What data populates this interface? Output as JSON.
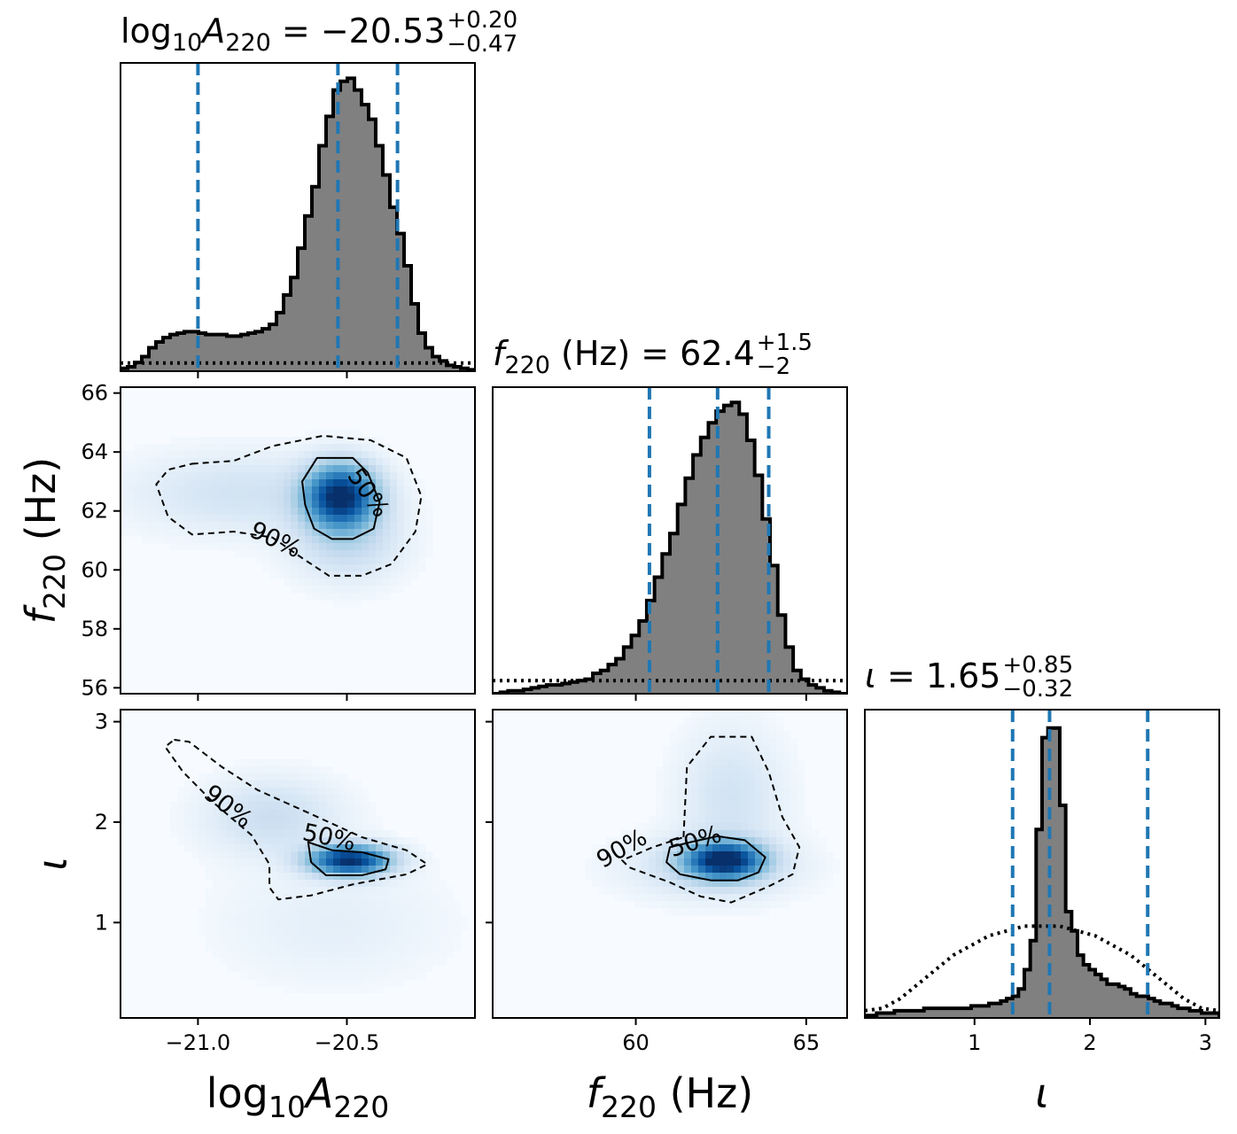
{
  "chart_data": {
    "type": "corner",
    "colors": {
      "histogram_fill": "#808080",
      "histogram_edge": "#000000",
      "quantile_line": "#1f77b4",
      "density_map": "Blues",
      "prior_line": "#000000"
    },
    "parameters": [
      {
        "key": "logA",
        "axis_label": {
          "base": "log",
          "sub1": "10",
          "var": "A",
          "sub2": "220"
        },
        "title": {
          "prefix": "log",
          "prefix_sub": "10",
          "var": "A",
          "var_sub": "220",
          "eq": " = −20.53",
          "sup": "+0.20",
          "sub": "−0.47"
        },
        "range": [
          -21.26,
          -20.07
        ],
        "ticks": [
          -21.0,
          -20.5
        ],
        "tick_labels": [
          "−21.0",
          "−20.5"
        ],
        "quantiles": [
          -21.0,
          -20.53,
          -20.33
        ],
        "prior_level": 0.028,
        "hist": {
          "edges_start": -21.26,
          "edges_end": -20.07,
          "heights": [
            0.01,
            0.015,
            0.03,
            0.05,
            0.08,
            0.1,
            0.115,
            0.125,
            0.13,
            0.135,
            0.135,
            0.13,
            0.125,
            0.125,
            0.125,
            0.12,
            0.12,
            0.125,
            0.13,
            0.135,
            0.145,
            0.16,
            0.2,
            0.26,
            0.32,
            0.42,
            0.53,
            0.63,
            0.77,
            0.87,
            0.96,
            0.99,
            1.0,
            0.96,
            0.91,
            0.86,
            0.77,
            0.67,
            0.56,
            0.47,
            0.36,
            0.23,
            0.13,
            0.08,
            0.05,
            0.035,
            0.02,
            0.015,
            0.01,
            0.005
          ]
        }
      },
      {
        "key": "f220",
        "axis_label": {
          "var": "f",
          "sub": "220",
          "unit": " (Hz)"
        },
        "title": {
          "var": "f",
          "var_sub": "220",
          "unit": " (Hz)",
          "eq": " = 62.4",
          "sup": "+1.5",
          "sub": "−2"
        },
        "range": [
          55.8,
          66.2
        ],
        "ticks": [
          60,
          65
        ],
        "tick_labels": [
          "60",
          "65"
        ],
        "y_ticks": [
          56,
          58,
          60,
          62,
          64,
          66
        ],
        "y_tick_labels": [
          "56",
          "58",
          "60",
          "62",
          "64",
          "66"
        ],
        "quantiles": [
          60.4,
          62.4,
          63.9
        ],
        "prior_level": 0.045,
        "hist": {
          "edges_start": 55.8,
          "edges_end": 66.2,
          "heights": [
            0.0,
            0.005,
            0.01,
            0.01,
            0.015,
            0.02,
            0.025,
            0.03,
            0.03,
            0.035,
            0.04,
            0.045,
            0.05,
            0.07,
            0.08,
            0.1,
            0.12,
            0.16,
            0.2,
            0.25,
            0.32,
            0.4,
            0.48,
            0.55,
            0.65,
            0.74,
            0.82,
            0.88,
            0.93,
            0.97,
            0.99,
            1.0,
            0.96,
            0.87,
            0.75,
            0.6,
            0.44,
            0.27,
            0.16,
            0.08,
            0.05,
            0.03,
            0.02,
            0.01,
            0.005,
            0.0
          ]
        }
      },
      {
        "key": "iota",
        "axis_label": {
          "var": "ι"
        },
        "title": {
          "var": "ι",
          "eq": " = 1.65",
          "sup": "+0.85",
          "sub": "−0.32"
        },
        "range": [
          0.05,
          3.12
        ],
        "ticks": [
          1,
          2,
          3
        ],
        "tick_labels": [
          "1",
          "2",
          "3"
        ],
        "y_ticks": [
          1,
          2,
          3
        ],
        "y_tick_labels": [
          "1",
          "2",
          "3"
        ],
        "quantiles": [
          1.33,
          1.65,
          2.5
        ],
        "hist": {
          "edges_start": 0.05,
          "edges_end": 3.12,
          "heights": [
            0.005,
            0.005,
            0.01,
            0.01,
            0.01,
            0.015,
            0.015,
            0.015,
            0.015,
            0.015,
            0.02,
            0.02,
            0.02,
            0.02,
            0.02,
            0.02,
            0.02,
            0.02,
            0.025,
            0.025,
            0.025,
            0.03,
            0.03,
            0.035,
            0.04,
            0.045,
            0.06,
            0.1,
            0.16,
            0.39,
            0.58,
            0.6,
            0.6,
            0.44,
            0.22,
            0.18,
            0.13,
            0.11,
            0.1,
            0.09,
            0.08,
            0.07,
            0.07,
            0.065,
            0.06,
            0.05,
            0.045,
            0.045,
            0.04,
            0.035,
            0.03,
            0.03,
            0.025,
            0.02,
            0.02,
            0.015,
            0.015,
            0.01,
            0.01,
            0.01
          ]
        },
        "prior_curve": [
          0.015,
          0.02,
          0.04,
          0.07,
          0.1,
          0.13,
          0.15,
          0.17,
          0.18,
          0.19,
          0.19,
          0.19,
          0.18,
          0.17,
          0.15,
          0.13,
          0.1,
          0.07,
          0.04,
          0.02,
          0.015
        ]
      }
    ],
    "panels_2d": [
      {
        "x": "logA",
        "y": "f220",
        "density": [
          {
            "cx": -20.52,
            "cy": 62.5,
            "sx": 0.08,
            "sy": 0.7,
            "w": 1.0
          },
          {
            "cx": -20.85,
            "cy": 62.6,
            "sx": 0.25,
            "sy": 0.9,
            "w": 0.12
          },
          {
            "cx": -20.5,
            "cy": 61.0,
            "sx": 0.12,
            "sy": 0.9,
            "w": 0.18
          }
        ],
        "contours": [
          {
            "label": "50%",
            "style": "solid",
            "points": [
              [
                -20.6,
                63.8
              ],
              [
                -20.48,
                63.8
              ],
              [
                -20.43,
                63.3
              ],
              [
                -20.39,
                62.3
              ],
              [
                -20.41,
                61.4
              ],
              [
                -20.48,
                61.05
              ],
              [
                -20.55,
                61.05
              ],
              [
                -20.61,
                61.4
              ],
              [
                -20.64,
                62.2
              ],
              [
                -20.65,
                63.0
              ]
            ]
          },
          {
            "label": "90%",
            "style": "dashed",
            "points": [
              [
                -21.02,
                63.6
              ],
              [
                -20.88,
                63.7
              ],
              [
                -20.75,
                64.2
              ],
              [
                -20.58,
                64.55
              ],
              [
                -20.42,
                64.4
              ],
              [
                -20.3,
                63.8
              ],
              [
                -20.25,
                62.5
              ],
              [
                -20.27,
                61.3
              ],
              [
                -20.35,
                60.2
              ],
              [
                -20.45,
                59.8
              ],
              [
                -20.56,
                59.8
              ],
              [
                -20.65,
                60.4
              ],
              [
                -20.75,
                61.1
              ],
              [
                -20.88,
                61.3
              ],
              [
                -21.02,
                61.2
              ],
              [
                -21.1,
                61.8
              ],
              [
                -21.14,
                62.9
              ],
              [
                -21.1,
                63.4
              ]
            ]
          }
        ],
        "contour_labels": [
          {
            "text": "50%",
            "x": -20.43,
            "y": 62.6,
            "rotate": 55
          },
          {
            "text": "90%",
            "x": -20.74,
            "y": 61.0,
            "rotate": 25
          }
        ]
      },
      {
        "x": "logA",
        "y": "iota",
        "density": [
          {
            "cx": -20.49,
            "cy": 1.62,
            "sx": 0.09,
            "sy": 0.1,
            "w": 1.0
          },
          {
            "cx": -20.75,
            "cy": 2.05,
            "sx": 0.15,
            "sy": 0.25,
            "w": 0.15
          },
          {
            "cx": -20.55,
            "cy": 1.0,
            "sx": 0.25,
            "sy": 0.4,
            "w": 0.05
          }
        ],
        "contours": [
          {
            "label": "50%",
            "style": "solid",
            "points": [
              [
                -20.63,
                1.8
              ],
              [
                -20.55,
                1.72
              ],
              [
                -20.45,
                1.7
              ],
              [
                -20.36,
                1.63
              ],
              [
                -20.37,
                1.53
              ],
              [
                -20.45,
                1.47
              ],
              [
                -20.57,
                1.47
              ],
              [
                -20.62,
                1.6
              ]
            ]
          },
          {
            "label": "90%",
            "style": "dashed",
            "points": [
              [
                -21.08,
                2.82
              ],
              [
                -21.03,
                2.8
              ],
              [
                -20.92,
                2.55
              ],
              [
                -20.8,
                2.32
              ],
              [
                -20.62,
                2.08
              ],
              [
                -20.45,
                1.85
              ],
              [
                -20.3,
                1.72
              ],
              [
                -20.23,
                1.58
              ],
              [
                -20.3,
                1.48
              ],
              [
                -20.48,
                1.38
              ],
              [
                -20.62,
                1.27
              ],
              [
                -20.73,
                1.23
              ],
              [
                -20.76,
                1.35
              ],
              [
                -20.76,
                1.58
              ],
              [
                -20.82,
                1.87
              ],
              [
                -20.95,
                2.2
              ],
              [
                -21.05,
                2.5
              ],
              [
                -21.11,
                2.75
              ]
            ]
          }
        ],
        "contour_labels": [
          {
            "text": "50%",
            "x": -20.56,
            "y": 1.84,
            "rotate": 12
          },
          {
            "text": "90%",
            "x": -20.9,
            "y": 2.15,
            "rotate": 38
          }
        ]
      },
      {
        "x": "f220",
        "y": "iota",
        "density": [
          {
            "cx": 62.6,
            "cy": 1.62,
            "sx": 0.75,
            "sy": 0.12,
            "w": 1.0
          },
          {
            "cx": 62.8,
            "cy": 2.25,
            "sx": 1.0,
            "sy": 0.45,
            "w": 0.12
          },
          {
            "cx": 62.2,
            "cy": 1.55,
            "sx": 1.6,
            "sy": 0.2,
            "w": 0.15
          }
        ],
        "contours": [
          {
            "label": "50%",
            "style": "solid",
            "points": [
              [
                61.0,
                1.75
              ],
              [
                61.6,
                1.8
              ],
              [
                62.4,
                1.86
              ],
              [
                63.2,
                1.82
              ],
              [
                63.8,
                1.65
              ],
              [
                63.6,
                1.5
              ],
              [
                63.0,
                1.42
              ],
              [
                62.2,
                1.42
              ],
              [
                61.3,
                1.48
              ],
              [
                60.9,
                1.6
              ]
            ]
          },
          {
            "label": "90%",
            "style": "dashed",
            "points": [
              [
                61.4,
                1.85
              ],
              [
                61.5,
                2.55
              ],
              [
                62.2,
                2.85
              ],
              [
                63.4,
                2.85
              ],
              [
                63.9,
                2.5
              ],
              [
                64.3,
                2.05
              ],
              [
                64.8,
                1.75
              ],
              [
                64.6,
                1.48
              ],
              [
                63.9,
                1.36
              ],
              [
                62.8,
                1.2
              ],
              [
                61.9,
                1.26
              ],
              [
                61.0,
                1.4
              ],
              [
                59.8,
                1.55
              ],
              [
                59.6,
                1.62
              ],
              [
                60.5,
                1.75
              ]
            ]
          }
        ],
        "contour_labels": [
          {
            "text": "50%",
            "x": 61.75,
            "y": 1.8,
            "rotate": -18
          },
          {
            "text": "90%",
            "x": 59.6,
            "y": 1.73,
            "rotate": -30
          }
        ]
      }
    ]
  }
}
